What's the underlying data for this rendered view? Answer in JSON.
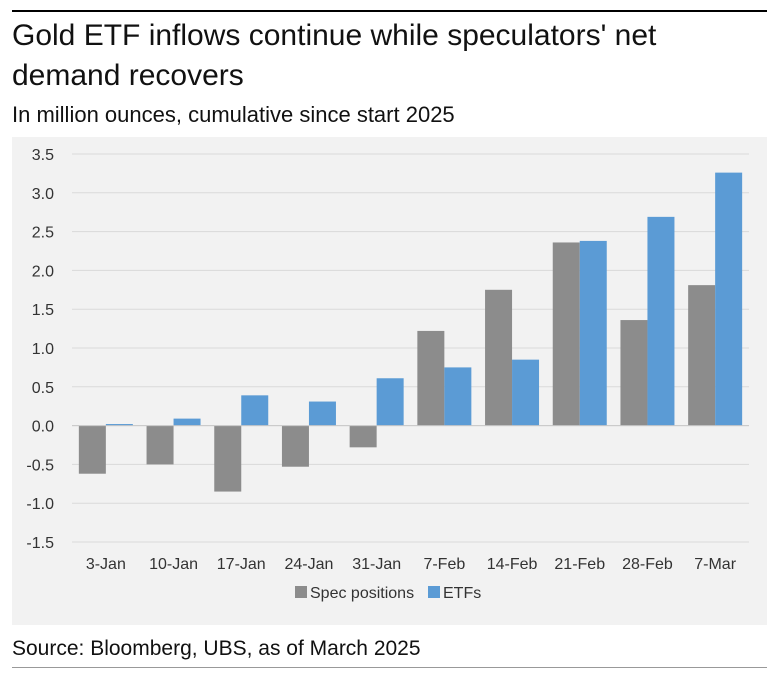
{
  "title": "Gold ETF inflows continue while speculators' net demand recovers",
  "subtitle": "In million ounces, cumulative since start 2025",
  "source": "Source: Bloomberg, UBS, as of March 2025",
  "colors": {
    "spec": "#8c8c8c",
    "etf": "#5b9bd5",
    "panel": "#f2f2f2",
    "grid": "#d9d9d9"
  },
  "chart_data": {
    "type": "bar",
    "title": "Gold ETF inflows continue while speculators' net demand recovers",
    "subtitle": "In million ounces, cumulative since start 2025",
    "xlabel": "",
    "ylabel": "",
    "categories": [
      "3-Jan",
      "10-Jan",
      "17-Jan",
      "24-Jan",
      "31-Jan",
      "7-Feb",
      "14-Feb",
      "21-Feb",
      "28-Feb",
      "7-Mar"
    ],
    "series": [
      {
        "name": "Spec positions",
        "color": "#8c8c8c",
        "values": [
          -0.62,
          -0.5,
          -0.85,
          -0.53,
          -0.28,
          1.22,
          1.75,
          2.36,
          1.36,
          1.81
        ]
      },
      {
        "name": "ETFs",
        "color": "#5b9bd5",
        "values": [
          0.02,
          0.09,
          0.39,
          0.31,
          0.61,
          0.75,
          0.85,
          2.38,
          2.69,
          3.26
        ]
      }
    ],
    "ylim": [
      -1.5,
      3.5
    ],
    "yticks": [
      "3.5",
      "3.0",
      "2.5",
      "2.0",
      "1.5",
      "1.0",
      "0.5",
      "0.0",
      "-0.5",
      "-1.0",
      "-1.5"
    ],
    "grid": true,
    "legend_position": "bottom"
  }
}
